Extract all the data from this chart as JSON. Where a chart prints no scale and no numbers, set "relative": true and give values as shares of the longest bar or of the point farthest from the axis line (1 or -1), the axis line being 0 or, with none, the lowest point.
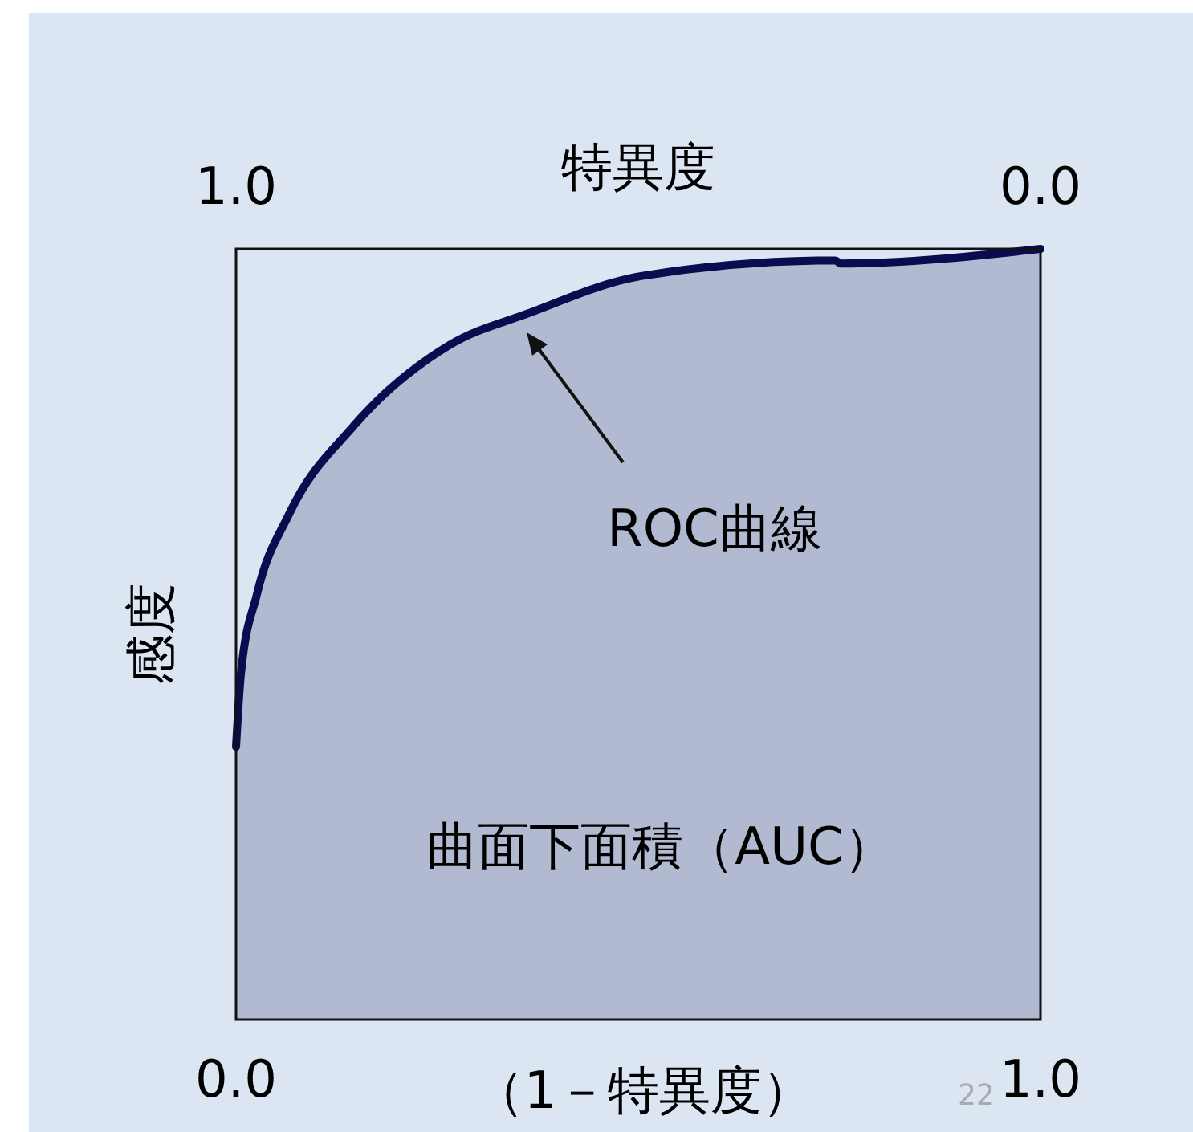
{
  "chart_data": {
    "type": "area",
    "xlabel": "（1－特異度）",
    "x2label": "特異度",
    "ylabel": "感度",
    "xlim": [
      0,
      1
    ],
    "xticks": [
      {
        "value": 0,
        "label": "0.0"
      },
      {
        "value": 1,
        "label": "1.0"
      }
    ],
    "x2lim": [
      1,
      0
    ],
    "x2ticks": [
      {
        "value": 1,
        "label": "1.0"
      },
      {
        "value": 0,
        "label": "0.0"
      }
    ],
    "relative": true,
    "series": [
      {
        "color": "#0b0b50",
        "x": [
          0,
          0.006,
          0.026,
          0.066,
          0.146,
          0.265,
          0.365,
          0.505,
          0.745,
          0.752,
          1
        ],
        "values": [
          0.354,
          0.448,
          0.552,
          0.656,
          0.77,
          0.875,
          0.917,
          0.965,
          0.985,
          0.981,
          1
        ]
      }
    ],
    "annotations": [
      "ROC曲線",
      "曲面下面積（AUC）",
      "22"
    ]
  }
}
